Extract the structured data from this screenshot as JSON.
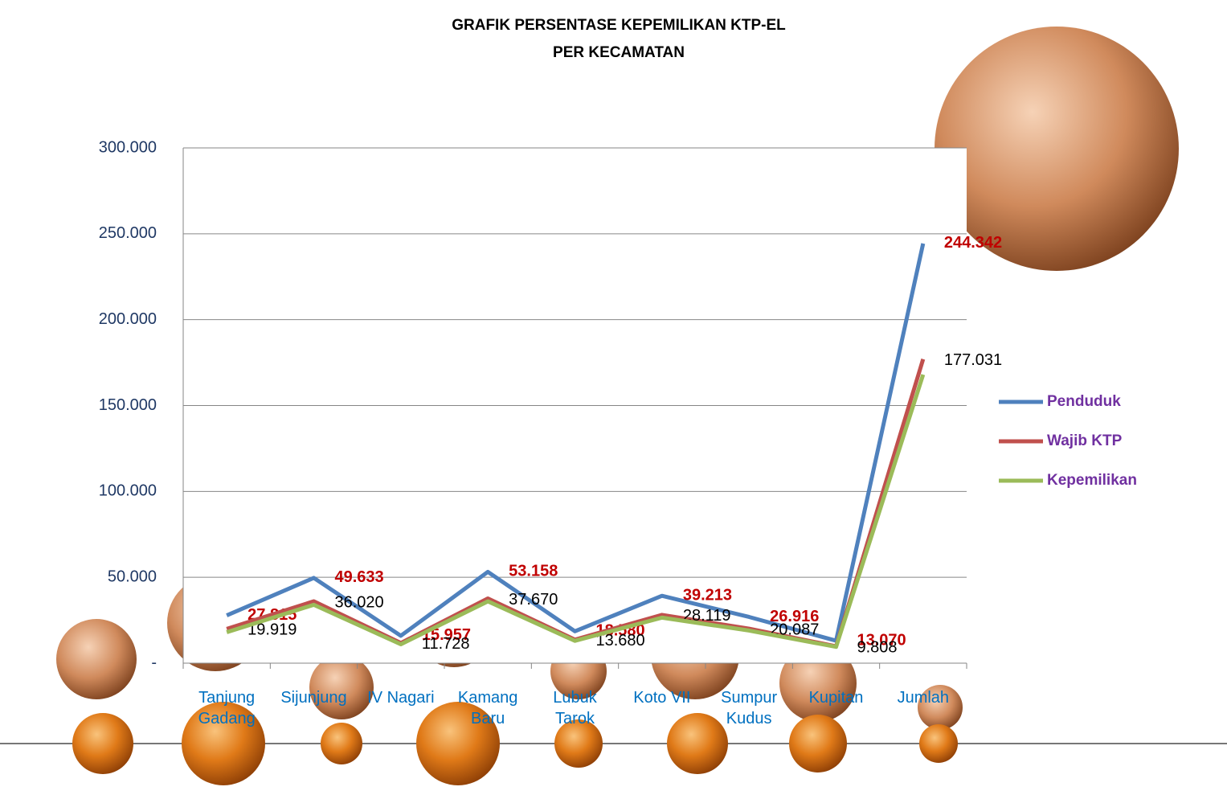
{
  "chart_data": {
    "type": "line",
    "title": "GRAFIK PERSENTASE KEPEMILIKAN KTP-EL",
    "subtitle": "PER KECAMATAN",
    "categories": [
      "Tanjung Gadang",
      "Sijunjung",
      "IV Nagari",
      "Kamang Baru",
      "Lubuk Tarok",
      "Koto VII",
      "Sumpur Kudus",
      "Kupitan",
      "Jumlah"
    ],
    "series": [
      {
        "name": "Penduduk",
        "color": "#4f81bd",
        "values": [
          27815,
          49633,
          15957,
          53158,
          18580,
          39213,
          26916,
          13070,
          244342
        ],
        "value_labels": [
          "27.815",
          "49.633",
          "15.957",
          "53.158",
          "18.580",
          "39.213",
          "26.916",
          "13.070",
          "244.342"
        ]
      },
      {
        "name": "Wajib KTP",
        "color": "#c0504d",
        "values": [
          19919,
          36020,
          11728,
          37670,
          13680,
          28119,
          20087,
          9808,
          177031
        ],
        "value_labels": [
          "19.919",
          "36.020",
          "11.728",
          "37.670",
          "13.680",
          "28.119",
          "20.087",
          "9.808",
          "177.031"
        ]
      },
      {
        "name": "Kepemilikan",
        "color": "#9bbb59",
        "values": [
          18000,
          34000,
          11000,
          36000,
          13000,
          26500,
          19000,
          9500,
          168000
        ]
      }
    ],
    "ylim": [
      0,
      300000
    ],
    "yticks": [
      {
        "value": 0,
        "label": "-"
      },
      {
        "value": 50000,
        "label": "50.000"
      },
      {
        "value": 100000,
        "label": "100.000"
      },
      {
        "value": 150000,
        "label": "150.000"
      },
      {
        "value": 200000,
        "label": "200.000"
      },
      {
        "value": 250000,
        "label": "250.000"
      },
      {
        "value": 300000,
        "label": "300.000"
      }
    ],
    "grid": true,
    "legend": "right"
  }
}
